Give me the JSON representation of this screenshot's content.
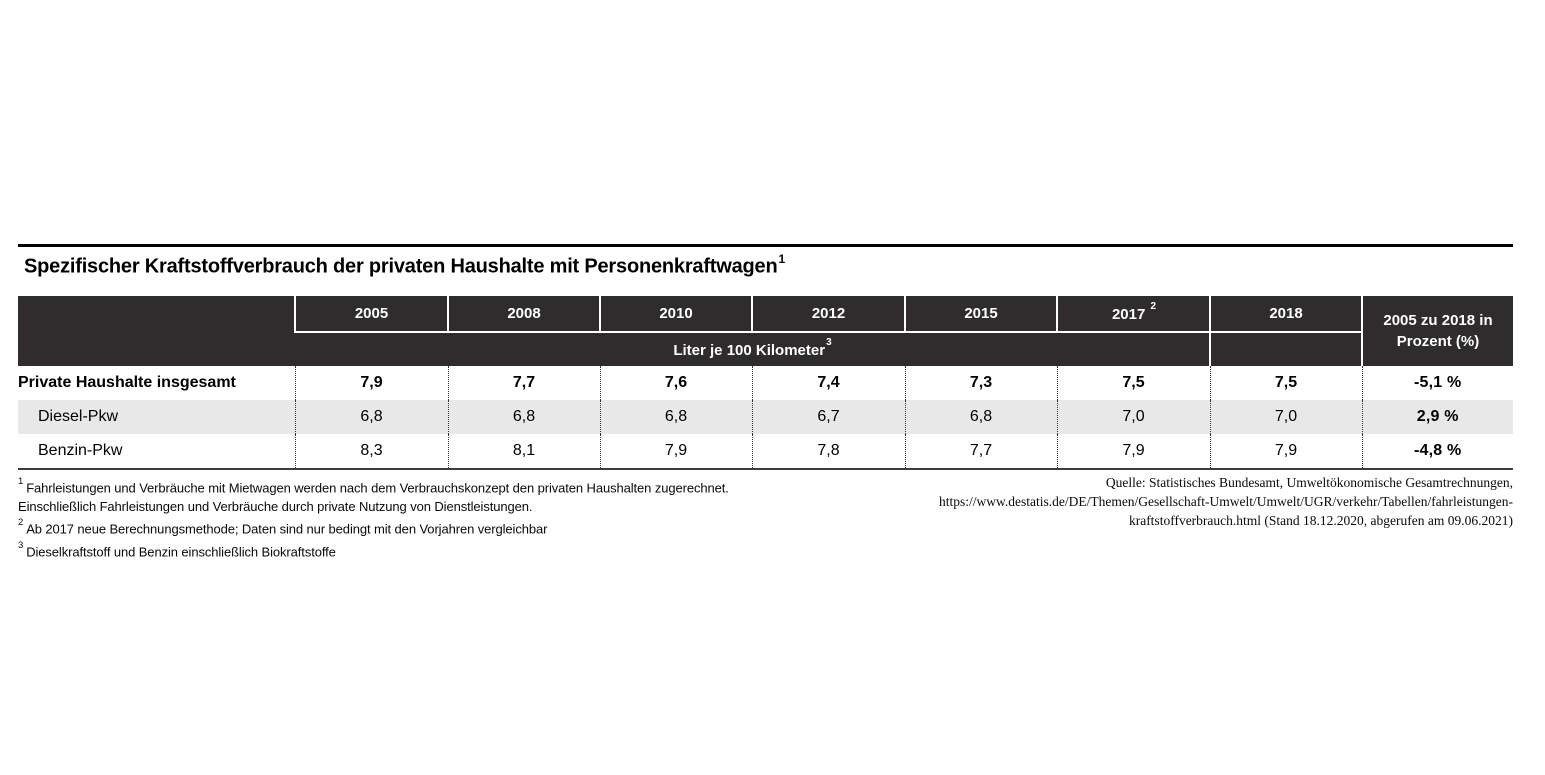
{
  "title": {
    "text": "Spezifischer Kraftstoffverbrauch der privaten Haushalte mit Personenkraftwagen",
    "superscript": "1"
  },
  "table": {
    "year_headers": [
      {
        "label": "2005",
        "superscript": ""
      },
      {
        "label": "2008",
        "superscript": ""
      },
      {
        "label": "2010",
        "superscript": ""
      },
      {
        "label": "2012",
        "superscript": ""
      },
      {
        "label": "2015",
        "superscript": ""
      },
      {
        "label": "2017",
        "superscript": "2"
      },
      {
        "label": "2018",
        "superscript": ""
      }
    ],
    "unit_band": {
      "text": "Liter je 100 Kilometer",
      "superscript": "3"
    },
    "change_header": {
      "line1": "2005 zu 2018 in",
      "line2": "Prozent (%)"
    },
    "rows": [
      {
        "label": "Private Haushalte insgesamt",
        "values": [
          "7,9",
          "7,7",
          "7,6",
          "7,4",
          "7,3",
          "7,5",
          "7,5"
        ],
        "change": "-5,1 %",
        "emphasis": true,
        "indent": false
      },
      {
        "label": "Diesel-Pkw",
        "values": [
          "6,8",
          "6,8",
          "6,8",
          "6,7",
          "6,8",
          "7,0",
          "7,0"
        ],
        "change": "2,9 %",
        "emphasis": false,
        "indent": true
      },
      {
        "label": "Benzin-Pkw",
        "values": [
          "8,3",
          "8,1",
          "7,9",
          "7,8",
          "7,7",
          "7,9",
          "7,9"
        ],
        "change": "-4,8 %",
        "emphasis": false,
        "indent": true
      }
    ]
  },
  "footnotes": [
    {
      "marker": "1",
      "text": "Fahrleistungen und Verbräuche mit Mietwagen werden nach dem Verbrauchskonzept den privaten Haushalten zugerechnet."
    },
    {
      "marker": "",
      "text": "Einschließlich Fahrleistungen und Verbräuche durch private Nutzung von Dienstleistungen."
    },
    {
      "marker": "2",
      "text": "Ab 2017 neue Berechnungsmethode; Daten sind nur bedingt mit den Vorjahren vergleichbar"
    },
    {
      "marker": "3",
      "text": "Dieselkraftstoff und Benzin einschließlich Biokraftstoffe"
    }
  ],
  "source": {
    "lines": [
      "Quelle: Statistisches Bundesamt, Umweltökonomische Gesamtrechnungen,",
      "https://www.destatis.de/DE/Themen/Gesellschaft-Umwelt/Umwelt/UGR/verkehr/Tabellen/fahrleistungen-",
      "kraftstoffverbrauch.html (Stand 18.12.2020, abgerufen am 09.06.2021)"
    ]
  },
  "colors": {
    "header_bg": "#2e2c2c",
    "header_text": "#ffffff",
    "stripe": "#e8e8e8",
    "rule": "#000000",
    "table_border": "#3d3d3d",
    "dotted": "#333333",
    "text": "#000000"
  },
  "chart_data": {
    "type": "table",
    "title": "Spezifischer Kraftstoffverbrauch der privaten Haushalte mit Personenkraftwagen",
    "unit": "Liter je 100 Kilometer",
    "categories": [
      "2005",
      "2008",
      "2010",
      "2012",
      "2015",
      "2017",
      "2018"
    ],
    "series": [
      {
        "name": "Private Haushalte insgesamt",
        "values": [
          7.9,
          7.7,
          7.6,
          7.4,
          7.3,
          7.5,
          7.5
        ],
        "change_2005_to_2018_percent": -5.1
      },
      {
        "name": "Diesel-Pkw",
        "values": [
          6.8,
          6.8,
          6.8,
          6.7,
          6.8,
          7.0,
          7.0
        ],
        "change_2005_to_2018_percent": 2.9
      },
      {
        "name": "Benzin-Pkw",
        "values": [
          8.3,
          8.1,
          7.9,
          7.8,
          7.7,
          7.9,
          7.9
        ],
        "change_2005_to_2018_percent": -4.8
      }
    ],
    "legend_position": "none",
    "grid": false
  }
}
